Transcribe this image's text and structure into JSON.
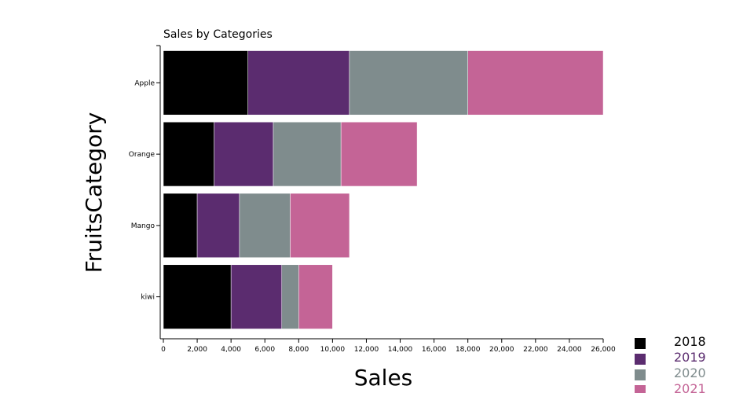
{
  "chart_data": {
    "type": "bar",
    "orientation": "horizontal",
    "stacked": true,
    "title": "Sales by Categories",
    "xlabel": "Sales",
    "ylabel": "FruitsCategory",
    "categories": [
      "Apple",
      "Orange",
      "Mango",
      "kiwi"
    ],
    "series": [
      {
        "name": "2018",
        "values": [
          5000,
          3000,
          2000,
          4000
        ],
        "color": "#000000",
        "label_color": "#000000"
      },
      {
        "name": "2019",
        "values": [
          6000,
          3500,
          2500,
          3000
        ],
        "color": "#5b2c6f",
        "label_color": "#5b2c6f"
      },
      {
        "name": "2020",
        "values": [
          7000,
          4000,
          3000,
          1000
        ],
        "color": "#7f8c8d",
        "label_color": "#7f8c8d"
      },
      {
        "name": "2021",
        "values": [
          8000,
          4500,
          3500,
          2000
        ],
        "color": "#c46496",
        "label_color": "#c46496"
      }
    ],
    "xlim": [
      0,
      26000
    ],
    "xticks": [
      "0",
      "2,000",
      "4,000",
      "6,000",
      "8,000",
      "10,000",
      "12,000",
      "14,000",
      "16,000",
      "18,000",
      "20,000",
      "22,000",
      "24,000",
      "26,000"
    ],
    "grid": false,
    "legend_position": "bottom-right"
  }
}
